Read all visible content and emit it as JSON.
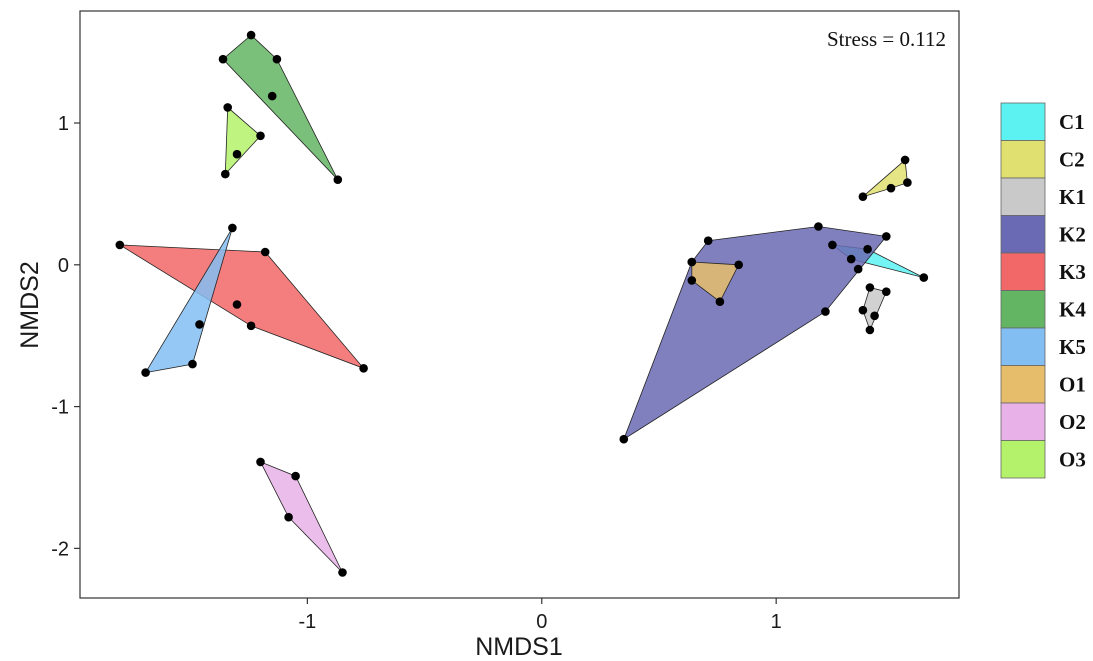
{
  "chart_data": {
    "type": "scatter",
    "title": "",
    "xlabel": "NMDS1",
    "ylabel": "NMDS2",
    "xlim": [
      -1.97,
      1.78
    ],
    "ylim": [
      -2.35,
      1.79
    ],
    "xticks": [
      -1,
      0,
      1
    ],
    "yticks": [
      -2,
      -1,
      0,
      1
    ],
    "grid": false,
    "legend_position": "right",
    "annotation": "Stress = 0.112",
    "groups": [
      {
        "name": "C1",
        "color": "#5cf2f2",
        "points": [
          [
            1.39,
            0.11
          ],
          [
            1.32,
            0.04
          ],
          [
            1.63,
            -0.09
          ],
          [
            1.24,
            0.14
          ]
        ]
      },
      {
        "name": "C2",
        "color": "#e0e070",
        "points": [
          [
            1.55,
            0.74
          ],
          [
            1.56,
            0.58
          ],
          [
            1.37,
            0.48
          ],
          [
            1.49,
            0.54
          ]
        ]
      },
      {
        "name": "K1",
        "color": "#c9c9c9",
        "points": [
          [
            1.4,
            -0.16
          ],
          [
            1.47,
            -0.19
          ],
          [
            1.4,
            -0.46
          ],
          [
            1.37,
            -0.32
          ],
          [
            1.42,
            -0.36
          ]
        ]
      },
      {
        "name": "K2",
        "color": "#6a6ab4",
        "points": [
          [
            0.35,
            -1.23
          ],
          [
            0.71,
            0.17
          ],
          [
            1.18,
            0.27
          ],
          [
            1.47,
            0.2
          ],
          [
            1.21,
            -0.33
          ],
          [
            1.35,
            -0.03
          ],
          [
            0.64,
            0.02
          ]
        ]
      },
      {
        "name": "K3",
        "color": "#f26767",
        "points": [
          [
            -1.8,
            0.14
          ],
          [
            -1.18,
            0.09
          ],
          [
            -0.76,
            -0.73
          ],
          [
            -1.24,
            -0.43
          ],
          [
            -1.3,
            -0.28
          ]
        ]
      },
      {
        "name": "K4",
        "color": "#63b563",
        "points": [
          [
            -1.36,
            1.45
          ],
          [
            -1.24,
            1.62
          ],
          [
            -1.13,
            1.45
          ],
          [
            -0.87,
            0.6
          ],
          [
            -1.15,
            1.19
          ]
        ]
      },
      {
        "name": "K5",
        "color": "#82bef2",
        "points": [
          [
            -1.69,
            -0.76
          ],
          [
            -1.32,
            0.26
          ],
          [
            -1.49,
            -0.7
          ],
          [
            -1.46,
            -0.42
          ]
        ]
      },
      {
        "name": "O1",
        "color": "#e6bd6b",
        "points": [
          [
            0.64,
            0.02
          ],
          [
            0.84,
            0.0
          ],
          [
            0.76,
            -0.26
          ],
          [
            0.64,
            -0.11
          ]
        ]
      },
      {
        "name": "O2",
        "color": "#e8b2e8",
        "points": [
          [
            -1.2,
            -1.39
          ],
          [
            -1.05,
            -1.49
          ],
          [
            -0.85,
            -2.17
          ],
          [
            -1.08,
            -1.78
          ]
        ]
      },
      {
        "name": "O3",
        "color": "#b5f26b",
        "points": [
          [
            -1.34,
            1.11
          ],
          [
            -1.2,
            0.91
          ],
          [
            -1.35,
            0.64
          ],
          [
            -1.3,
            0.78
          ]
        ]
      }
    ]
  }
}
